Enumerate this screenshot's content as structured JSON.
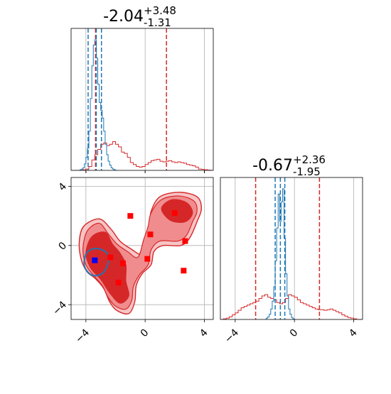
{
  "chart_data": {
    "type": "corner",
    "grid": true,
    "colors": {
      "red": "#d62728",
      "blue": "#1f77b4",
      "red_fill_light": "#f08c8e",
      "red_fill_dark": "#d62728",
      "marker_red": "#ff0000",
      "marker_blue": "#0000ff"
    },
    "parameters": [
      {
        "title_median": "-2.04",
        "title_plus": "+3.48",
        "title_minus": "-1.31",
        "xlim": [
          -5,
          4.6
        ],
        "ticks": [
          -4,
          0,
          4
        ],
        "tick_labels": [
          "−4",
          "0",
          "4"
        ],
        "red_quantile_lines": [
          -3.35,
          1.44
        ],
        "blue_quantile_lines": [
          -3.85,
          -3.3,
          -2.95
        ],
        "red_hist": {
          "bins": [
            -5.0,
            -4.8,
            -4.6,
            -4.4,
            -4.2,
            -4.0,
            -3.8,
            -3.6,
            -3.4,
            -3.2,
            -3.0,
            -2.8,
            -2.6,
            -2.4,
            -2.2,
            -2.0,
            -1.8,
            -1.6,
            -1.4,
            -1.2,
            -1.0,
            -0.8,
            -0.6,
            -0.4,
            -0.2,
            0.0,
            0.2,
            0.4,
            0.6,
            0.8,
            1.0,
            1.2,
            1.4,
            1.6,
            1.8,
            2.0,
            2.2,
            2.4,
            2.6,
            2.8,
            3.0,
            3.2,
            3.4,
            3.6,
            3.8,
            4.0,
            4.2,
            4.4
          ],
          "counts": [
            0,
            0,
            0,
            0,
            0.005,
            0.01,
            0.03,
            0.08,
            0.12,
            0.16,
            0.2,
            0.21,
            0.19,
            0.2,
            0.22,
            0.2,
            0.18,
            0.14,
            0.13,
            0.1,
            0.06,
            0.045,
            0.03,
            0.025,
            0.03,
            0.045,
            0.06,
            0.075,
            0.08,
            0.085,
            0.07,
            0.065,
            0.07,
            0.075,
            0.065,
            0.06,
            0.065,
            0.06,
            0.055,
            0.045,
            0.04,
            0.035,
            0.025,
            0.01,
            0.008,
            0.005,
            0.002,
            0
          ]
        },
        "blue_hist": {
          "bins": [
            -4.5,
            -4.4,
            -4.3,
            -4.2,
            -4.1,
            -4.0,
            -3.9,
            -3.8,
            -3.7,
            -3.6,
            -3.5,
            -3.4,
            -3.3,
            -3.2,
            -3.1,
            -3.0,
            -2.9,
            -2.8,
            -2.7,
            -2.6,
            -2.5,
            -2.4,
            -2.3,
            -2.2,
            -2.1,
            -2.0
          ],
          "counts": [
            0,
            0.005,
            0.01,
            0.02,
            0.05,
            0.1,
            0.17,
            0.3,
            0.55,
            0.8,
            0.96,
            1.0,
            0.86,
            0.66,
            0.52,
            0.46,
            0.4,
            0.3,
            0.2,
            0.12,
            0.07,
            0.04,
            0.02,
            0.01,
            0.005,
            0
          ]
        }
      },
      {
        "title_median": "-0.67",
        "title_plus": "+2.36",
        "title_minus": "-1.95",
        "xlim": [
          -5,
          4.6
        ],
        "ticks": [
          -4,
          0,
          4
        ],
        "tick_labels": [
          "−4",
          "0",
          "4"
        ],
        "red_quantile_lines": [
          -2.62,
          1.69
        ],
        "blue_quantile_lines": [
          -1.3,
          -0.95,
          -0.65
        ],
        "red_hist": {
          "bins": [
            -5.0,
            -4.8,
            -4.6,
            -4.4,
            -4.2,
            -4.0,
            -3.8,
            -3.6,
            -3.4,
            -3.2,
            -3.0,
            -2.8,
            -2.6,
            -2.4,
            -2.2,
            -2.0,
            -1.8,
            -1.6,
            -1.4,
            -1.2,
            -1.0,
            -0.8,
            -0.6,
            -0.4,
            -0.2,
            0.0,
            0.2,
            0.4,
            0.6,
            0.8,
            1.0,
            1.2,
            1.4,
            1.6,
            1.8,
            2.0,
            2.2,
            2.4,
            2.6,
            2.8,
            3.0,
            3.2,
            3.4,
            3.6,
            3.8,
            4.0,
            4.2,
            4.4
          ],
          "counts": [
            0,
            0.005,
            0.01,
            0.02,
            0.035,
            0.05,
            0.07,
            0.09,
            0.1,
            0.11,
            0.12,
            0.13,
            0.14,
            0.16,
            0.18,
            0.19,
            0.17,
            0.16,
            0.15,
            0.13,
            0.12,
            0.13,
            0.16,
            0.19,
            0.18,
            0.17,
            0.15,
            0.13,
            0.12,
            0.11,
            0.1,
            0.09,
            0.08,
            0.075,
            0.075,
            0.07,
            0.075,
            0.08,
            0.07,
            0.06,
            0.05,
            0.035,
            0.025,
            0.015,
            0.01,
            0.005,
            0,
            0
          ]
        },
        "blue_hist": {
          "bins": [
            -2.0,
            -1.9,
            -1.8,
            -1.7,
            -1.6,
            -1.5,
            -1.4,
            -1.3,
            -1.2,
            -1.1,
            -1.0,
            -0.9,
            -0.8,
            -0.7,
            -0.6,
            -0.5,
            -0.4,
            -0.3,
            -0.2,
            -0.1,
            0.0
          ],
          "counts": [
            0,
            0.01,
            0.02,
            0.04,
            0.08,
            0.14,
            0.25,
            0.45,
            0.7,
            0.96,
            0.75,
            0.9,
            1.0,
            0.62,
            0.35,
            0.18,
            0.08,
            0.04,
            0.015,
            0.005,
            0
          ]
        }
      }
    ],
    "joint": {
      "xlim": [
        -5,
        4.6
      ],
      "ylim": [
        -5,
        4.6
      ],
      "xticks": [
        -4,
        0,
        4
      ],
      "yticks": [
        -4,
        0,
        4
      ],
      "tick_labels": [
        "−4",
        "0",
        "4"
      ],
      "contour_outer": [
        [
          -4.15,
          1.3
        ],
        [
          -3.1,
          1.8
        ],
        [
          -2.3,
          1.1
        ],
        [
          -1.7,
          0.3
        ],
        [
          -1.0,
          -0.2
        ],
        [
          -0.2,
          -0.6
        ],
        [
          0.0,
          0.5
        ],
        [
          0.3,
          1.3
        ],
        [
          0.4,
          2.3
        ],
        [
          1.0,
          3.3
        ],
        [
          2.3,
          3.6
        ],
        [
          3.5,
          3.3
        ],
        [
          3.8,
          2.5
        ],
        [
          3.5,
          1.6
        ],
        [
          3.0,
          0.5
        ],
        [
          2.4,
          0.0
        ],
        [
          1.2,
          0.0
        ],
        [
          0.6,
          -0.4
        ],
        [
          0.4,
          -1.3
        ],
        [
          -0.2,
          -1.9
        ],
        [
          -0.6,
          -2.7
        ],
        [
          -0.7,
          -3.8
        ],
        [
          -1.1,
          -4.6
        ],
        [
          -1.9,
          -4.4
        ],
        [
          -2.4,
          -3.8
        ],
        [
          -2.8,
          -2.9
        ],
        [
          -3.4,
          -2.2
        ],
        [
          -3.9,
          -1.8
        ],
        [
          -4.3,
          -1.0
        ],
        [
          -4.45,
          0.2
        ]
      ],
      "contour_mid": [
        [
          -3.9,
          1.0
        ],
        [
          -3.1,
          1.5
        ],
        [
          -2.5,
          0.8
        ],
        [
          -1.9,
          0.1
        ],
        [
          -1.2,
          -0.4
        ],
        [
          -0.5,
          -0.8
        ],
        [
          -0.1,
          0.4
        ],
        [
          0.2,
          1.3
        ],
        [
          0.4,
          2.2
        ],
        [
          1.1,
          3.1
        ],
        [
          2.3,
          3.35
        ],
        [
          3.3,
          3.0
        ],
        [
          3.5,
          2.3
        ],
        [
          3.2,
          1.6
        ],
        [
          2.8,
          0.7
        ],
        [
          2.2,
          0.3
        ],
        [
          1.0,
          0.3
        ],
        [
          0.4,
          -0.3
        ],
        [
          0.2,
          -1.3
        ],
        [
          -0.4,
          -2.0
        ],
        [
          -0.8,
          -2.8
        ],
        [
          -0.9,
          -3.7
        ],
        [
          -1.3,
          -4.3
        ],
        [
          -2.0,
          -4.1
        ],
        [
          -2.5,
          -3.5
        ],
        [
          -2.9,
          -2.7
        ],
        [
          -3.5,
          -2.0
        ],
        [
          -4.0,
          -1.3
        ],
        [
          -4.2,
          -0.2
        ]
      ],
      "contour_inner_a": [
        [
          -3.6,
          0.6
        ],
        [
          -2.7,
          0.9
        ],
        [
          -2.2,
          0.1
        ],
        [
          -1.7,
          -0.5
        ],
        [
          -1.3,
          -1.3
        ],
        [
          -1.3,
          -2.4
        ],
        [
          -1.1,
          -3.4
        ],
        [
          -1.7,
          -3.9
        ],
        [
          -2.4,
          -3.2
        ],
        [
          -3.0,
          -2.3
        ],
        [
          -3.7,
          -1.5
        ],
        [
          -4.0,
          -0.5
        ]
      ],
      "contour_inner_b": [
        [
          1.1,
          2.5
        ],
        [
          1.8,
          3.1
        ],
        [
          2.8,
          2.9
        ],
        [
          3.2,
          2.2
        ],
        [
          2.7,
          1.6
        ],
        [
          1.7,
          1.7
        ]
      ],
      "contour_blue": [
        [
          -3.95,
          -0.5
        ],
        [
          -3.3,
          -0.2
        ],
        [
          -2.6,
          -0.5
        ],
        [
          -2.5,
          -1.2
        ],
        [
          -2.9,
          -1.9
        ],
        [
          -3.6,
          -2.0
        ],
        [
          -4.1,
          -1.4
        ]
      ],
      "red_square_markers": [
        [
          -1.0,
          2.0
        ],
        [
          2.0,
          2.2
        ],
        [
          2.7,
          0.3
        ],
        [
          0.35,
          0.75
        ],
        [
          0.15,
          -0.9
        ],
        [
          -2.35,
          -0.8
        ],
        [
          -1.5,
          -1.2
        ],
        [
          -1.8,
          -2.5
        ],
        [
          2.6,
          -1.7
        ]
      ],
      "blue_square_marker": [
        -3.4,
        -1.0
      ]
    }
  }
}
